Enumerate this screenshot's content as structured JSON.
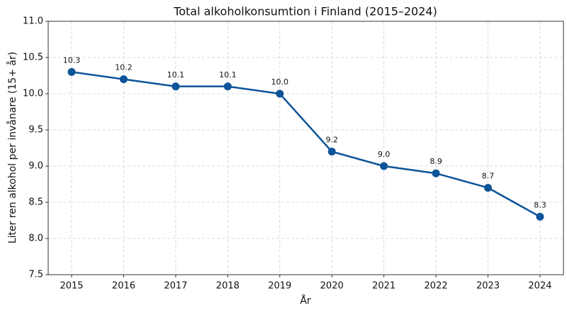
{
  "chart_data": {
    "type": "line",
    "title": "Total alkoholkonsumtion i Finland (2015–2024)",
    "x_label": "År",
    "y_label": "Liter ren alkohol per invånare (15+ år)",
    "x": [
      2015,
      2016,
      2017,
      2018,
      2019,
      2020,
      2021,
      2022,
      2023,
      2024
    ],
    "series": [
      {
        "name": "Total alkoholkonsumtion",
        "color": "#0d5499",
        "values": [
          10.3,
          10.2,
          10.1,
          10.1,
          10.0,
          9.2,
          9.0,
          8.9,
          8.7,
          8.3
        ],
        "value_labels": [
          "10.3",
          "10.2",
          "10.1",
          "10.1",
          "10.0",
          "9.2",
          "9.0",
          "8.9",
          "8.7",
          "8.3"
        ]
      }
    ],
    "xlim": [
      2014.55,
      2024.45
    ],
    "xticks": [
      2015,
      2016,
      2017,
      2018,
      2019,
      2020,
      2021,
      2022,
      2023,
      2024
    ],
    "ylim": [
      7.5,
      11.0
    ],
    "yticks": [
      7.5,
      {
        "value": 8.0,
        "label": "8.0"
      },
      8.5,
      {
        "value": 9.0,
        "label": "9.0"
      },
      9.5,
      {
        "value": 10.0,
        "label": "10.0"
      },
      10.5,
      {
        "value": 11.0,
        "label": "11.0"
      }
    ],
    "grid": true
  }
}
